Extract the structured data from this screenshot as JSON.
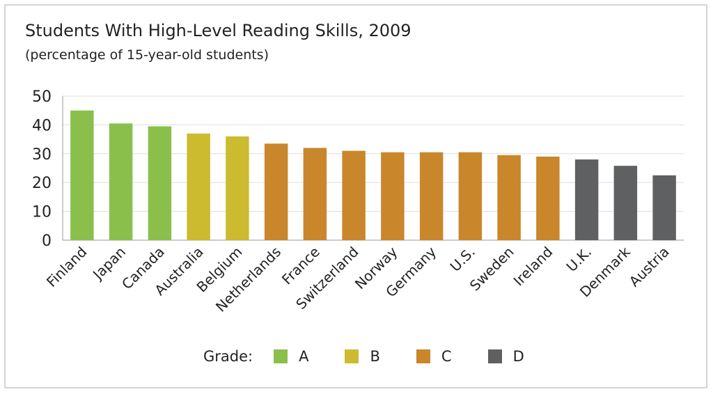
{
  "chart_data": {
    "type": "bar",
    "title": "Students With High-Level Reading Skills, 2009",
    "subtitle": "(percentage of 15-year-old students)",
    "categories": [
      "Finland",
      "Japan",
      "Canada",
      "Australia",
      "Belgium",
      "Netherlands",
      "France",
      "Switzerland",
      "Norway",
      "Germany",
      "U.S.",
      "Sweden",
      "Ireland",
      "U.K.",
      "Denmark",
      "Austria"
    ],
    "values": [
      45,
      40.5,
      39.5,
      37,
      36,
      33.5,
      32,
      31,
      30.5,
      30.5,
      30.5,
      29.5,
      29,
      28,
      25.8,
      22.5
    ],
    "grades": [
      "A",
      "A",
      "A",
      "B",
      "B",
      "C",
      "C",
      "C",
      "C",
      "C",
      "C",
      "C",
      "C",
      "D",
      "D",
      "D"
    ],
    "ylim": [
      0,
      50
    ],
    "yticks": [
      0,
      10,
      20,
      30,
      40,
      50
    ],
    "grid": true,
    "legend": {
      "label": "Grade:",
      "placement": "bottom",
      "items": [
        {
          "name": "A",
          "color": "#8bbf4c"
        },
        {
          "name": "B",
          "color": "#ccba2f"
        },
        {
          "name": "C",
          "color": "#c9862a"
        },
        {
          "name": "D",
          "color": "#5f6062"
        }
      ]
    }
  }
}
